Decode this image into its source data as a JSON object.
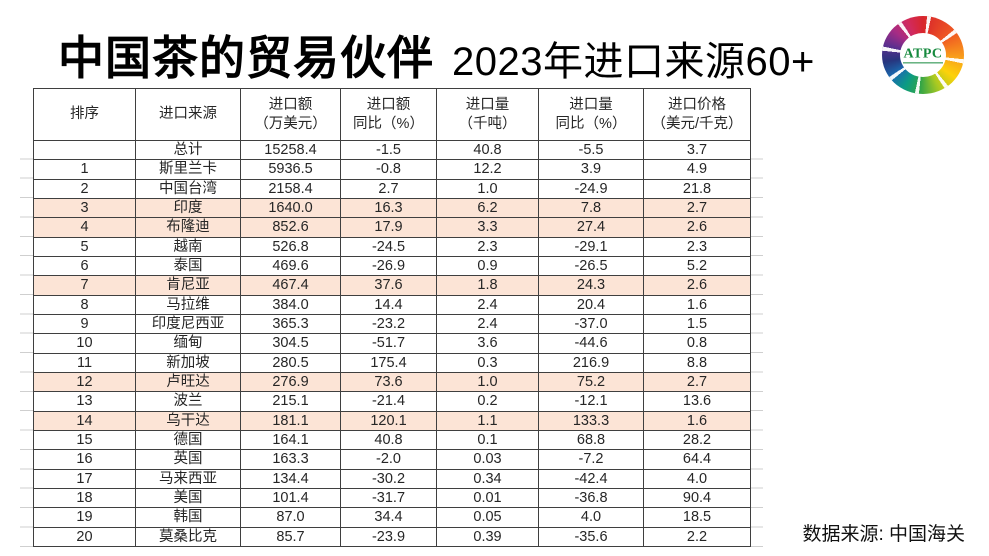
{
  "logo": {
    "text": "ATPC"
  },
  "colors": {
    "highlight_row": "#fce4d6",
    "table_border": "#3f3f3f",
    "logo_label_green": "#168a3e"
  },
  "chart_data": {
    "type": "table",
    "title": "中国茶的贸易伙伴",
    "subtitle": "2023年进口来源60+",
    "source_note": "数据来源: 中国海关",
    "columns": [
      {
        "line1": "排序",
        "line2": ""
      },
      {
        "line1": "进口来源",
        "line2": ""
      },
      {
        "line1": "进口额",
        "line2": "（万美元）"
      },
      {
        "line1": "进口额",
        "line2": "同比（%）"
      },
      {
        "line1": "进口量",
        "line2": "（千吨）"
      },
      {
        "line1": "进口量",
        "line2": "同比（%）"
      },
      {
        "line1": "进口价格",
        "line2": "（美元/千克）"
      }
    ],
    "rows": [
      {
        "rank": "",
        "source": "总计",
        "value": "15258.4",
        "value_yoy": "-1.5",
        "volume": "40.8",
        "volume_yoy": "-5.5",
        "price": "3.7",
        "highlight": false
      },
      {
        "rank": "1",
        "source": "斯里兰卡",
        "value": "5936.5",
        "value_yoy": "-0.8",
        "volume": "12.2",
        "volume_yoy": "3.9",
        "price": "4.9",
        "highlight": false
      },
      {
        "rank": "2",
        "source": "中国台湾",
        "value": "2158.4",
        "value_yoy": "2.7",
        "volume": "1.0",
        "volume_yoy": "-24.9",
        "price": "21.8",
        "highlight": false
      },
      {
        "rank": "3",
        "source": "印度",
        "value": "1640.0",
        "value_yoy": "16.3",
        "volume": "6.2",
        "volume_yoy": "7.8",
        "price": "2.7",
        "highlight": true
      },
      {
        "rank": "4",
        "source": "布隆迪",
        "value": "852.6",
        "value_yoy": "17.9",
        "volume": "3.3",
        "volume_yoy": "27.4",
        "price": "2.6",
        "highlight": true
      },
      {
        "rank": "5",
        "source": "越南",
        "value": "526.8",
        "value_yoy": "-24.5",
        "volume": "2.3",
        "volume_yoy": "-29.1",
        "price": "2.3",
        "highlight": false
      },
      {
        "rank": "6",
        "source": "泰国",
        "value": "469.6",
        "value_yoy": "-26.9",
        "volume": "0.9",
        "volume_yoy": "-26.5",
        "price": "5.2",
        "highlight": false
      },
      {
        "rank": "7",
        "source": "肯尼亚",
        "value": "467.4",
        "value_yoy": "37.6",
        "volume": "1.8",
        "volume_yoy": "24.3",
        "price": "2.6",
        "highlight": true
      },
      {
        "rank": "8",
        "source": "马拉维",
        "value": "384.0",
        "value_yoy": "14.4",
        "volume": "2.4",
        "volume_yoy": "20.4",
        "price": "1.6",
        "highlight": false
      },
      {
        "rank": "9",
        "source": "印度尼西亚",
        "value": "365.3",
        "value_yoy": "-23.2",
        "volume": "2.4",
        "volume_yoy": "-37.0",
        "price": "1.5",
        "highlight": false
      },
      {
        "rank": "10",
        "source": "缅甸",
        "value": "304.5",
        "value_yoy": "-51.7",
        "volume": "3.6",
        "volume_yoy": "-44.6",
        "price": "0.8",
        "highlight": false
      },
      {
        "rank": "11",
        "source": "新加坡",
        "value": "280.5",
        "value_yoy": "175.4",
        "volume": "0.3",
        "volume_yoy": "216.9",
        "price": "8.8",
        "highlight": false
      },
      {
        "rank": "12",
        "source": "卢旺达",
        "value": "276.9",
        "value_yoy": "73.6",
        "volume": "1.0",
        "volume_yoy": "75.2",
        "price": "2.7",
        "highlight": true
      },
      {
        "rank": "13",
        "source": "波兰",
        "value": "215.1",
        "value_yoy": "-21.4",
        "volume": "0.2",
        "volume_yoy": "-12.1",
        "price": "13.6",
        "highlight": false
      },
      {
        "rank": "14",
        "source": "乌干达",
        "value": "181.1",
        "value_yoy": "120.1",
        "volume": "1.1",
        "volume_yoy": "133.3",
        "price": "1.6",
        "highlight": true
      },
      {
        "rank": "15",
        "source": "德国",
        "value": "164.1",
        "value_yoy": "40.8",
        "volume": "0.1",
        "volume_yoy": "68.8",
        "price": "28.2",
        "highlight": false
      },
      {
        "rank": "16",
        "source": "英国",
        "value": "163.3",
        "value_yoy": "-2.0",
        "volume": "0.03",
        "volume_yoy": "-7.2",
        "price": "64.4",
        "highlight": false
      },
      {
        "rank": "17",
        "source": "马来西亚",
        "value": "134.4",
        "value_yoy": "-30.2",
        "volume": "0.34",
        "volume_yoy": "-42.4",
        "price": "4.0",
        "highlight": false
      },
      {
        "rank": "18",
        "source": "美国",
        "value": "101.4",
        "value_yoy": "-31.7",
        "volume": "0.01",
        "volume_yoy": "-36.8",
        "price": "90.4",
        "highlight": false
      },
      {
        "rank": "19",
        "source": "韩国",
        "value": "87.0",
        "value_yoy": "34.4",
        "volume": "0.05",
        "volume_yoy": "4.0",
        "price": "18.5",
        "highlight": false
      },
      {
        "rank": "20",
        "source": "莫桑比克",
        "value": "85.7",
        "value_yoy": "-23.9",
        "volume": "0.39",
        "volume_yoy": "-35.6",
        "price": "2.2",
        "highlight": false
      }
    ]
  }
}
